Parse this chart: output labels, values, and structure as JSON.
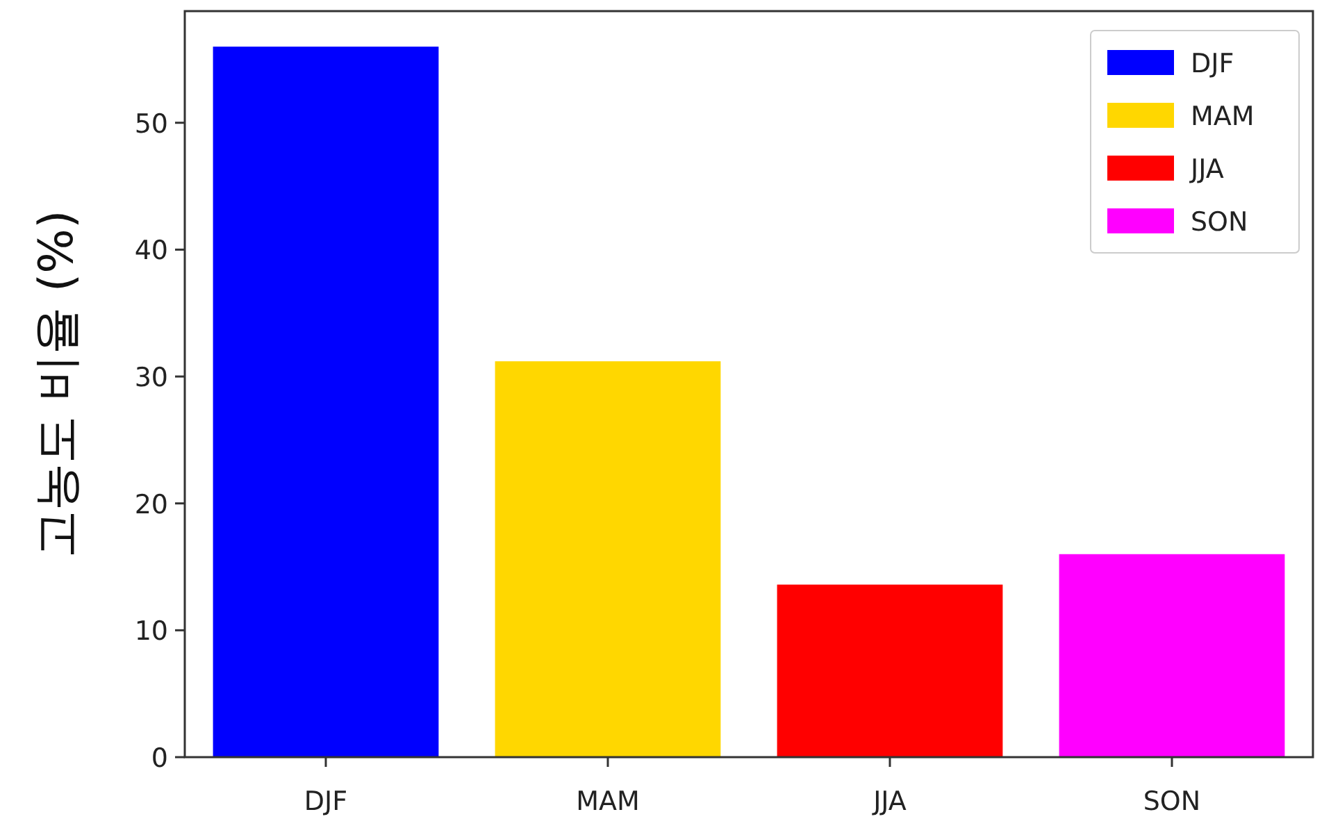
{
  "chart_data": {
    "type": "bar",
    "ylabel": "고농도 비율 (%)",
    "categories": [
      "DJF",
      "MAM",
      "JJA",
      "SON"
    ],
    "series": [
      {
        "name": "DJF",
        "color": "#0000ff",
        "values": [
          56.0,
          null,
          null,
          null
        ]
      },
      {
        "name": "MAM",
        "color": "#ffd700",
        "values": [
          null,
          31.2,
          null,
          null
        ]
      },
      {
        "name": "JJA",
        "color": "#ff0000",
        "values": [
          null,
          null,
          13.6,
          null
        ]
      },
      {
        "name": "SON",
        "color": "#ff00ff",
        "values": [
          null,
          null,
          null,
          16.0
        ]
      }
    ],
    "ylim": [
      0,
      58.8
    ],
    "yticks": [
      0,
      10,
      20,
      30,
      40,
      50
    ],
    "legend": "top right",
    "grid": false
  }
}
